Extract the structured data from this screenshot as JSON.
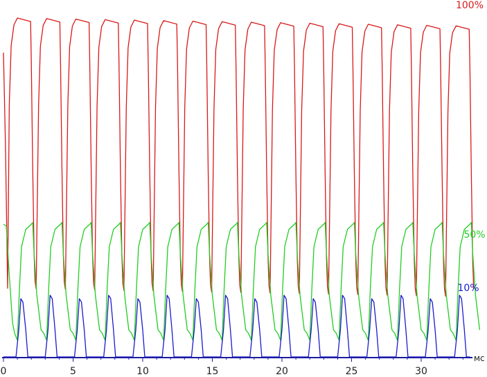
{
  "chart_data": {
    "type": "line",
    "title": "",
    "xlabel": "мс",
    "ylabel": "",
    "xlim": [
      0,
      35
    ],
    "ylim": [
      0,
      100
    ],
    "x_ticks": [
      0,
      5,
      10,
      15,
      20,
      25,
      30
    ],
    "grid": false,
    "axis_color": "#1a1aa0",
    "period_ms": 2.1,
    "series": [
      {
        "name": "100%",
        "color": "#d81818",
        "high": 98,
        "low": 20,
        "count": 16,
        "start_ms": 0
      },
      {
        "name": "50%",
        "color": "#22cc22",
        "high": 39,
        "low": 4,
        "count": 16,
        "start_ms": 0
      },
      {
        "name": "10%",
        "color": "#1a1acc",
        "high": 18,
        "low": 0,
        "count": 16,
        "start_ms": 0.9
      }
    ]
  }
}
